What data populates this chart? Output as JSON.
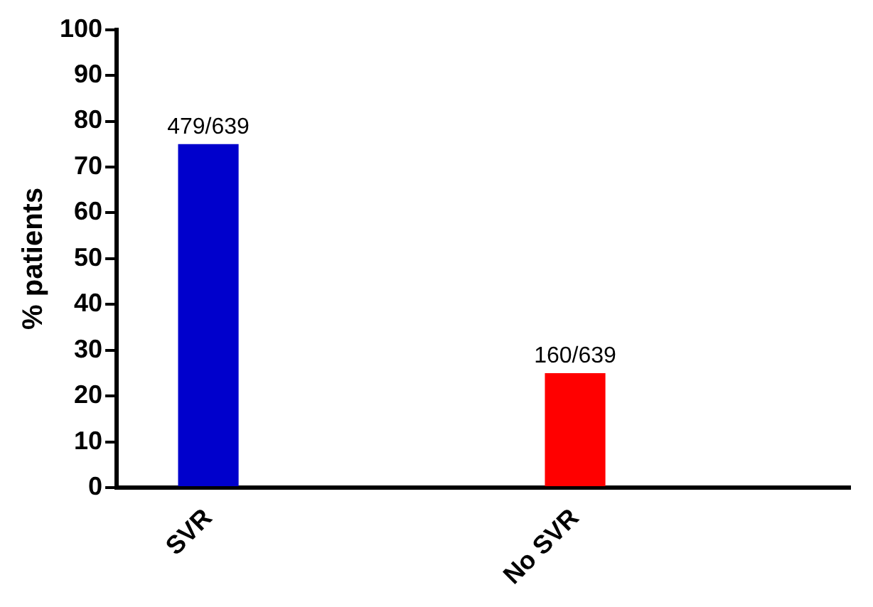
{
  "chart_data": {
    "type": "bar",
    "ylabel": "% patients",
    "categories": [
      "SVR",
      null,
      "No SVR",
      null
    ],
    "values": [
      75,
      null,
      25,
      null
    ],
    "colors": [
      "#0000cc",
      null,
      "#ff0000",
      null
    ],
    "value_labels": [
      "479/639",
      null,
      "160/639",
      null
    ],
    "ylim": [
      0,
      100
    ],
    "yticks": [
      0,
      10,
      20,
      30,
      40,
      50,
      60,
      70,
      80,
      90,
      100
    ],
    "grid": false,
    "legend": false
  }
}
